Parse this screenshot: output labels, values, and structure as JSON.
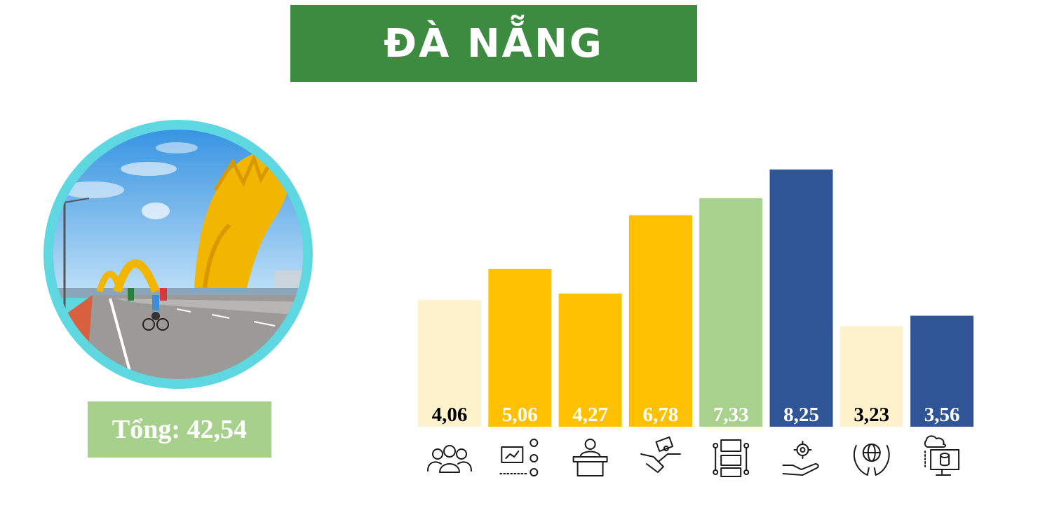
{
  "title": "ĐÀ NẴNG",
  "total_text": "Tổng: 42,54",
  "colors": {
    "title_bg": "#3d8a41",
    "total_bg": "#a8d08d",
    "photo_ring": "#5fd7e0"
  },
  "chart_data": {
    "type": "bar",
    "categories": [
      "people-group-icon",
      "presentation-icon",
      "speaker-podium-icon",
      "handshake-money-icon",
      "flowchart-icon",
      "gear-hand-icon",
      "globe-hands-icon",
      "cloud-database-monitor-icon"
    ],
    "values": [
      4.06,
      5.06,
      4.27,
      6.78,
      7.33,
      8.25,
      3.23,
      3.56
    ],
    "labels": [
      "4,06",
      "5,06",
      "4,27",
      "6,78",
      "7,33",
      "8,25",
      "3,23",
      "3,56"
    ],
    "bar_colors": [
      "#fdf2cc",
      "#ffc000",
      "#ffc000",
      "#ffc000",
      "#a9d18e",
      "#2f5597",
      "#fdf2cc",
      "#2f5597"
    ],
    "label_colors": [
      "#000000",
      "#ffffff",
      "#ffffff",
      "#ffffff",
      "#ffffff",
      "#ffffff",
      "#000000",
      "#ffffff"
    ],
    "ylim": [
      0,
      9
    ],
    "title": "",
    "xlabel": "",
    "ylabel": ""
  }
}
